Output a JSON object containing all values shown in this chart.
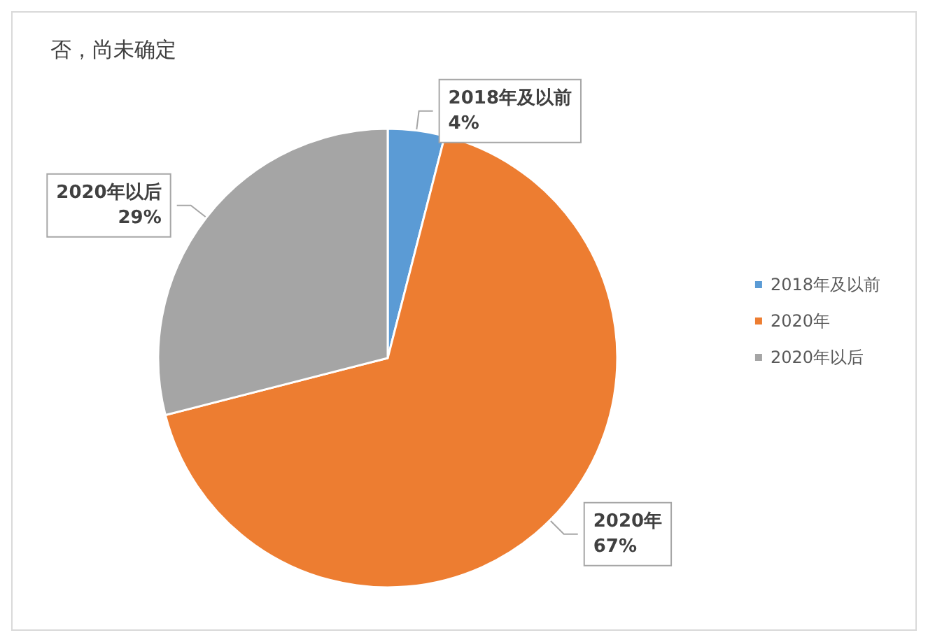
{
  "chart_data": {
    "type": "pie",
    "title": "否，尚未确定",
    "categories": [
      "2018年及以前",
      "2020年",
      "2020年以后"
    ],
    "values": [
      4,
      67,
      29
    ],
    "colors": [
      "#5b9bd5",
      "#ed7d31",
      "#a5a5a5"
    ],
    "value_labels": [
      "4%",
      "67%",
      "29%"
    ],
    "legend": "right"
  }
}
